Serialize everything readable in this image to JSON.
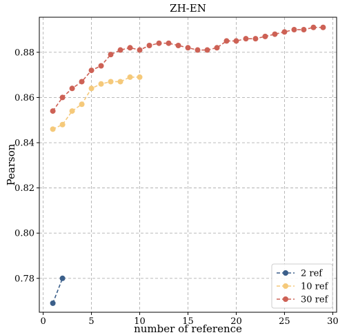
{
  "chart_data": {
    "type": "line",
    "title": "ZH-EN",
    "xlabel": "number of reference",
    "ylabel": "Pearson",
    "xlim": [
      -0.4,
      30.4
    ],
    "ylim": [
      0.765,
      0.8955
    ],
    "xticks": [
      0,
      5,
      10,
      15,
      20,
      25,
      30
    ],
    "yticks": [
      0.78,
      0.8,
      0.82,
      0.84,
      0.86,
      0.88
    ],
    "ytick_labels": [
      "0.78",
      "0.80",
      "0.82",
      "0.84",
      "0.86",
      "0.88"
    ],
    "grid": true,
    "legend_position": "bottom-right",
    "series": [
      {
        "name": "2 ref",
        "color": "#3b5f8a",
        "x": [
          1,
          2
        ],
        "y": [
          0.769,
          0.78
        ]
      },
      {
        "name": "10 ref",
        "color": "#f5c97a",
        "x": [
          1,
          2,
          3,
          4,
          5,
          6,
          7,
          8,
          9,
          10
        ],
        "y": [
          0.846,
          0.848,
          0.854,
          0.857,
          0.864,
          0.866,
          0.867,
          0.867,
          0.869,
          0.869
        ]
      },
      {
        "name": "30 ref",
        "color": "#cd6155",
        "x": [
          1,
          2,
          3,
          4,
          5,
          6,
          7,
          8,
          9,
          10,
          11,
          12,
          13,
          14,
          15,
          16,
          17,
          18,
          19,
          20,
          21,
          22,
          23,
          24,
          25,
          26,
          27,
          28,
          29
        ],
        "y": [
          0.854,
          0.86,
          0.864,
          0.867,
          0.872,
          0.874,
          0.879,
          0.881,
          0.882,
          0.881,
          0.883,
          0.884,
          0.884,
          0.883,
          0.882,
          0.881,
          0.881,
          0.882,
          0.885,
          0.885,
          0.886,
          0.886,
          0.887,
          0.888,
          0.889,
          0.89,
          0.89,
          0.891,
          0.891
        ]
      }
    ]
  }
}
